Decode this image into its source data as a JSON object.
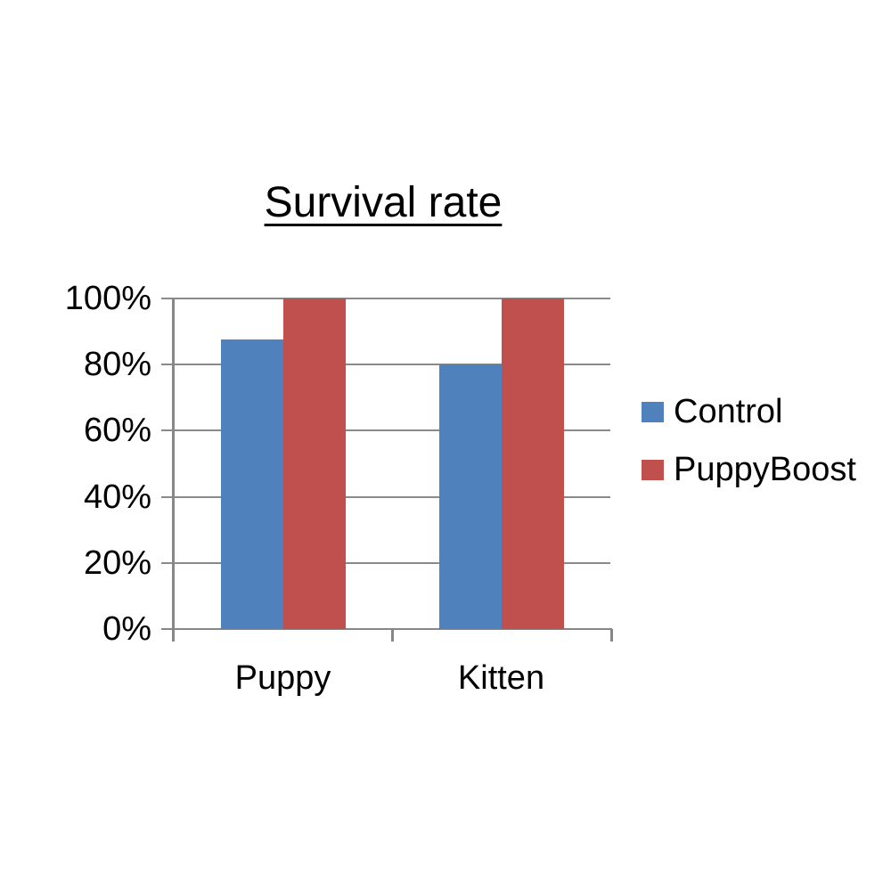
{
  "chart": {
    "title": "Survival rate",
    "colors": {
      "control_series": "#4F81BD",
      "puppyboost_series": "#C0504D",
      "gridline": "#8A8A8A",
      "axis": "#878787",
      "text": "#000000",
      "background": "#FFFFFF"
    }
  },
  "chart_data": {
    "type": "bar",
    "title": "Survival rate",
    "categories": [
      "Puppy",
      "Kitten"
    ],
    "series": [
      {
        "name": "Control",
        "color": "#4F81BD",
        "values": [
          87.5,
          80
        ]
      },
      {
        "name": "PuppyBoost",
        "color": "#C0504D",
        "values": [
          100,
          100
        ]
      }
    ],
    "xlabel": "",
    "ylabel": "",
    "ylim": [
      0,
      100
    ],
    "ytick_step": 20,
    "ytick_labels": [
      "0%",
      "20%",
      "40%",
      "60%",
      "80%",
      "100%"
    ],
    "grid": true,
    "legend_position": "right",
    "title_underlined": true
  }
}
